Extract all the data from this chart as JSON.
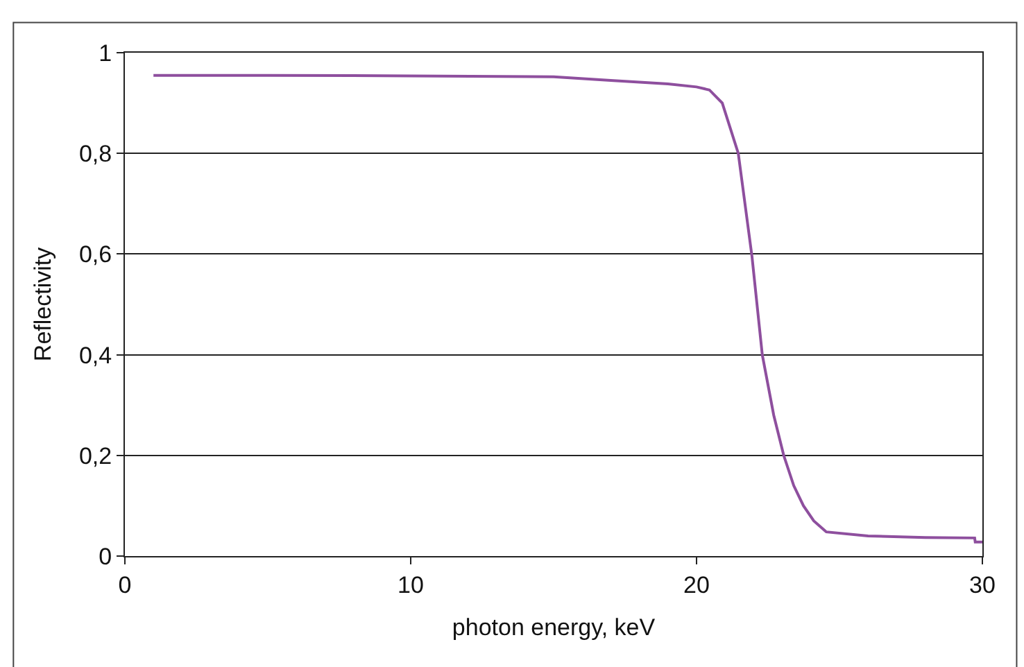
{
  "chart_data": {
    "type": "line",
    "xlabel": "photon energy, keV",
    "ylabel": "Reflectivity",
    "x": [
      1,
      5,
      10,
      15,
      17,
      19,
      20,
      20.45,
      20.9,
      21.46,
      21.94,
      22.3,
      22.7,
      23.05,
      23.4,
      23.74,
      24.1,
      24.54,
      26,
      28,
      29.73,
      29.75,
      30
    ],
    "series": [
      {
        "color": "#8e4f9e",
        "values": [
          0.955,
          0.955,
          0.954,
          0.952,
          0.945,
          0.938,
          0.932,
          0.926,
          0.9,
          0.8,
          0.595,
          0.4,
          0.28,
          0.2,
          0.14,
          0.1,
          0.07,
          0.048,
          0.04,
          0.037,
          0.036,
          0.028,
          0.028
        ]
      }
    ],
    "xlim": [
      0,
      30
    ],
    "xticks": [
      0,
      10,
      20,
      30
    ],
    "ylim": [
      0,
      1
    ],
    "yticks": [
      {
        "value": 0,
        "label": "0"
      },
      {
        "value": 0.2,
        "label": "0,2"
      },
      {
        "value": 0.4,
        "label": "0,4"
      },
      {
        "value": 0.6,
        "label": "0,6"
      },
      {
        "value": 0.8,
        "label": "0,8"
      },
      {
        "value": 1,
        "label": "1"
      }
    ],
    "grid": "y",
    "marker": "none",
    "line_style": "solid"
  }
}
